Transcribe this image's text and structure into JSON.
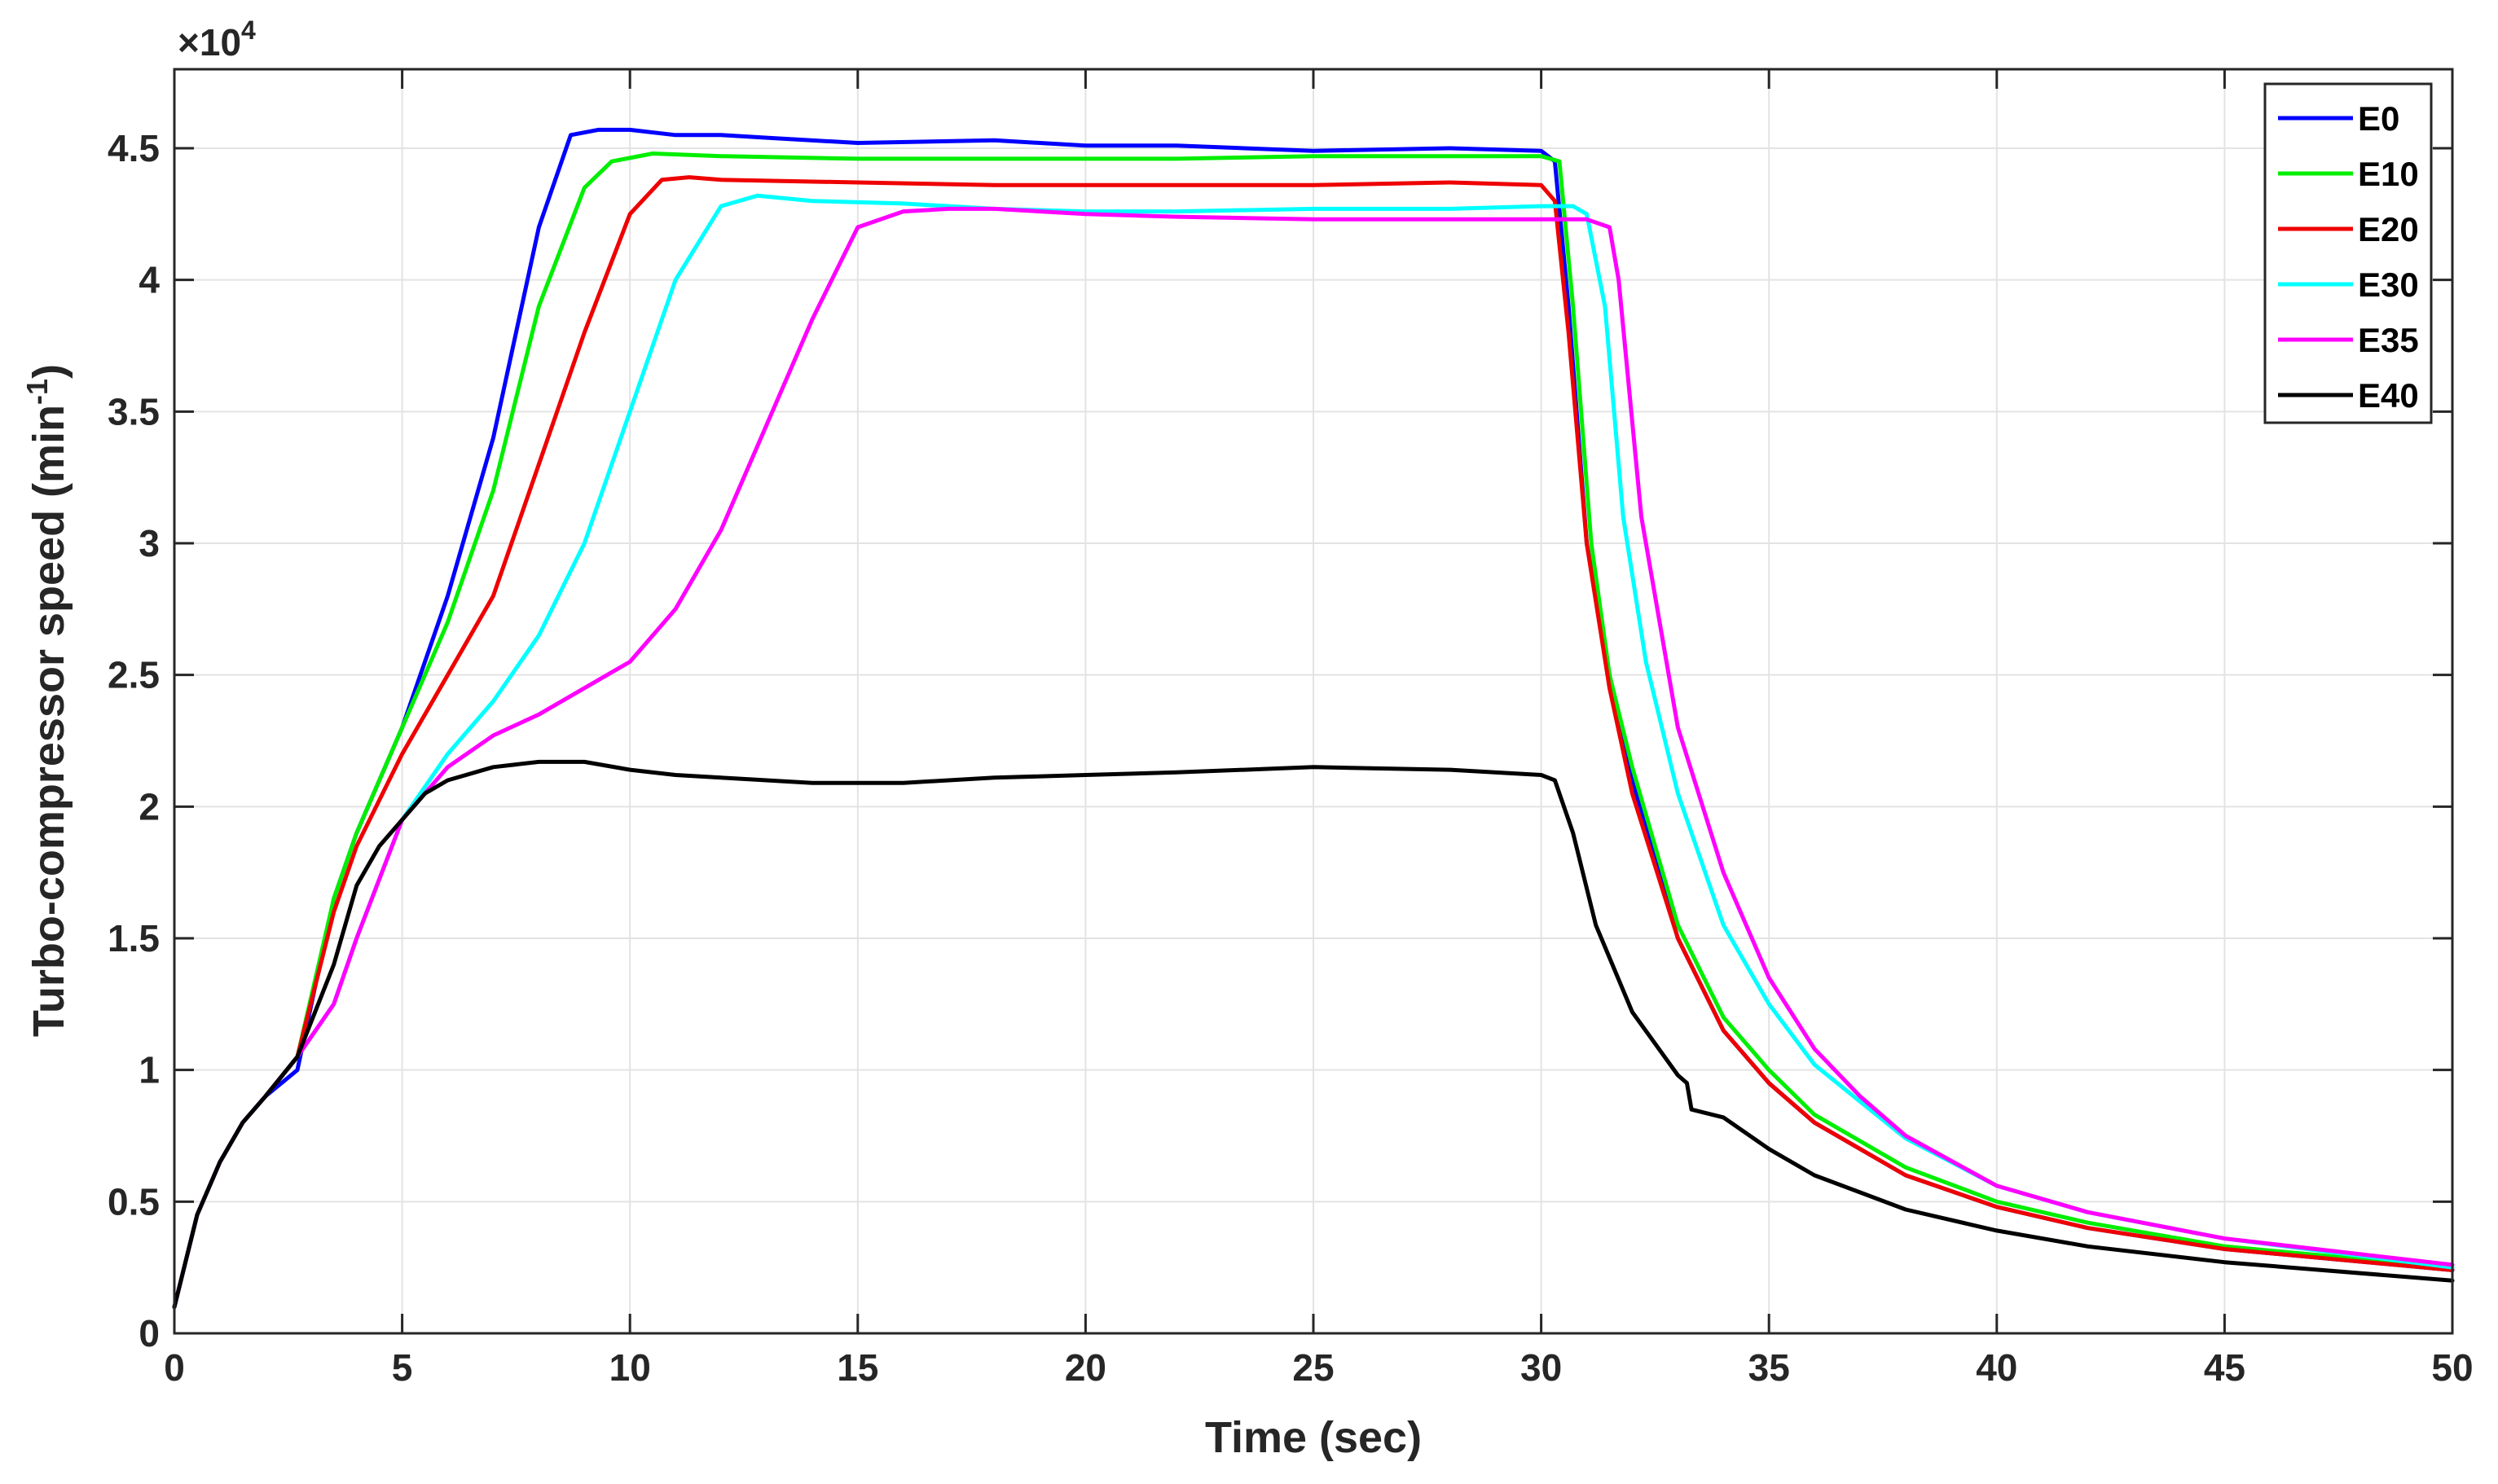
{
  "chart_data": {
    "type": "line",
    "title": "",
    "xlabel": "Time (sec)",
    "ylabel": "Turbo-compressor speed (min",
    "ylabel_sup": "-1",
    "ylabel_close": ")",
    "exponent_prefix": "×10",
    "exponent_power": "4",
    "xlim": [
      0,
      50
    ],
    "ylim": [
      0,
      4.8
    ],
    "xticks": [
      0,
      5,
      10,
      15,
      20,
      25,
      30,
      35,
      40,
      45,
      50
    ],
    "xtick_labels": [
      "0",
      "5",
      "10",
      "15",
      "20",
      "25",
      "30",
      "35",
      "40",
      "45",
      "50"
    ],
    "yticks": [
      0,
      0.5,
      1,
      1.5,
      2,
      2.5,
      3,
      3.5,
      4,
      4.5
    ],
    "ytick_labels": [
      "0",
      "0.5",
      "1",
      "1.5",
      "2",
      "2.5",
      "3",
      "3.5",
      "4",
      "4.5"
    ],
    "grid": true,
    "legend_position": "top-right",
    "series": [
      {
        "name": "E0",
        "color": "#0000ff",
        "x": [
          0,
          0.5,
          1,
          1.5,
          2,
          2.7,
          3.5,
          4,
          5,
          6,
          7,
          8,
          8.7,
          9.3,
          10,
          11,
          12,
          13,
          15,
          18,
          20,
          22,
          25,
          28,
          30,
          30.3,
          30.6,
          31,
          31.5,
          32,
          33,
          34,
          35,
          36,
          38,
          40,
          42,
          45,
          50
        ],
        "y": [
          0.1,
          0.45,
          0.65,
          0.8,
          0.9,
          1.0,
          1.65,
          1.9,
          2.3,
          2.8,
          3.4,
          4.2,
          4.55,
          4.57,
          4.57,
          4.55,
          4.55,
          4.54,
          4.52,
          4.53,
          4.51,
          4.51,
          4.49,
          4.5,
          4.49,
          4.45,
          3.9,
          3.0,
          2.5,
          2.1,
          1.5,
          1.15,
          0.95,
          0.8,
          0.6,
          0.48,
          0.4,
          0.32,
          0.24
        ]
      },
      {
        "name": "E10",
        "color": "#00ee00",
        "x": [
          0,
          0.5,
          1,
          1.5,
          2,
          2.7,
          3.5,
          4,
          5,
          6,
          7,
          8,
          9,
          9.6,
          10.5,
          12,
          15,
          18,
          20,
          22,
          25,
          28,
          30,
          30.4,
          30.7,
          31.1,
          31.5,
          32,
          33,
          34,
          35,
          36,
          38,
          40,
          42,
          45,
          50
        ],
        "y": [
          0.1,
          0.45,
          0.65,
          0.8,
          0.9,
          1.05,
          1.65,
          1.9,
          2.3,
          2.7,
          3.2,
          3.9,
          4.35,
          4.45,
          4.48,
          4.47,
          4.46,
          4.46,
          4.46,
          4.46,
          4.47,
          4.47,
          4.47,
          4.45,
          3.9,
          3.0,
          2.5,
          2.15,
          1.55,
          1.2,
          1.0,
          0.83,
          0.63,
          0.5,
          0.42,
          0.33,
          0.25
        ]
      },
      {
        "name": "E20",
        "color": "#ee0000",
        "x": [
          0,
          0.5,
          1,
          1.5,
          2,
          2.7,
          3.5,
          4,
          5,
          6,
          7,
          8,
          9,
          10,
          10.7,
          11.3,
          12,
          15,
          18,
          20,
          22,
          25,
          28,
          30,
          30.3,
          30.6,
          31,
          31.5,
          32,
          33,
          34,
          35,
          36,
          38,
          40,
          42,
          45,
          50
        ],
        "y": [
          0.1,
          0.45,
          0.65,
          0.8,
          0.9,
          1.05,
          1.6,
          1.85,
          2.2,
          2.5,
          2.8,
          3.3,
          3.8,
          4.25,
          4.38,
          4.39,
          4.38,
          4.37,
          4.36,
          4.36,
          4.36,
          4.36,
          4.37,
          4.36,
          4.3,
          3.8,
          3.0,
          2.45,
          2.05,
          1.5,
          1.15,
          0.95,
          0.8,
          0.6,
          0.48,
          0.4,
          0.32,
          0.24
        ]
      },
      {
        "name": "E30",
        "color": "#00ffff",
        "x": [
          0,
          0.5,
          1,
          1.5,
          2,
          2.7,
          3.5,
          4,
          5,
          6,
          7,
          8,
          9,
          10,
          11,
          12,
          12.8,
          14,
          16,
          18,
          20,
          22,
          25,
          28,
          30,
          30.7,
          31,
          31.4,
          31.8,
          32.3,
          33,
          34,
          35,
          36,
          38,
          40,
          42,
          45,
          50
        ],
        "y": [
          0.1,
          0.45,
          0.65,
          0.8,
          0.9,
          1.05,
          1.25,
          1.5,
          1.95,
          2.2,
          2.4,
          2.65,
          3.0,
          3.5,
          4.0,
          4.28,
          4.32,
          4.3,
          4.29,
          4.27,
          4.26,
          4.26,
          4.27,
          4.27,
          4.28,
          4.28,
          4.25,
          3.9,
          3.1,
          2.55,
          2.05,
          1.55,
          1.25,
          1.02,
          0.74,
          0.56,
          0.46,
          0.36,
          0.25
        ]
      },
      {
        "name": "E35",
        "color": "#ff00ff",
        "x": [
          0,
          0.5,
          1,
          1.5,
          2,
          2.7,
          3.5,
          4,
          5,
          6,
          7,
          8,
          9,
          10,
          11,
          12,
          13,
          14,
          15,
          16,
          17,
          18,
          20,
          22,
          25,
          28,
          30,
          31,
          31.5,
          31.7,
          32.2,
          33,
          34,
          35,
          36,
          37,
          38,
          40,
          42,
          45,
          50
        ],
        "y": [
          0.1,
          0.45,
          0.65,
          0.8,
          0.9,
          1.05,
          1.25,
          1.5,
          1.95,
          2.15,
          2.27,
          2.35,
          2.45,
          2.55,
          2.75,
          3.05,
          3.45,
          3.85,
          4.2,
          4.26,
          4.27,
          4.27,
          4.25,
          4.24,
          4.23,
          4.23,
          4.23,
          4.23,
          4.2,
          4.0,
          3.1,
          2.3,
          1.75,
          1.35,
          1.08,
          0.9,
          0.75,
          0.56,
          0.46,
          0.36,
          0.26
        ]
      },
      {
        "name": "E40",
        "color": "#000000",
        "x": [
          0,
          0.5,
          1,
          1.5,
          2,
          2.7,
          3.5,
          4,
          4.5,
          5,
          5.5,
          6,
          7,
          8,
          9,
          10,
          11,
          12,
          14,
          16,
          18,
          20,
          22,
          25,
          28,
          30,
          30.3,
          30.7,
          31.2,
          32,
          33,
          33.2,
          33.3,
          34,
          35,
          36,
          38,
          40,
          42,
          45,
          50
        ],
        "y": [
          0.1,
          0.45,
          0.65,
          0.8,
          0.9,
          1.05,
          1.4,
          1.7,
          1.85,
          1.95,
          2.05,
          2.1,
          2.15,
          2.17,
          2.17,
          2.14,
          2.12,
          2.11,
          2.09,
          2.09,
          2.11,
          2.12,
          2.13,
          2.15,
          2.14,
          2.12,
          2.1,
          1.9,
          1.55,
          1.22,
          0.98,
          0.95,
          0.85,
          0.82,
          0.7,
          0.6,
          0.47,
          0.39,
          0.33,
          0.27,
          0.2
        ]
      }
    ]
  }
}
